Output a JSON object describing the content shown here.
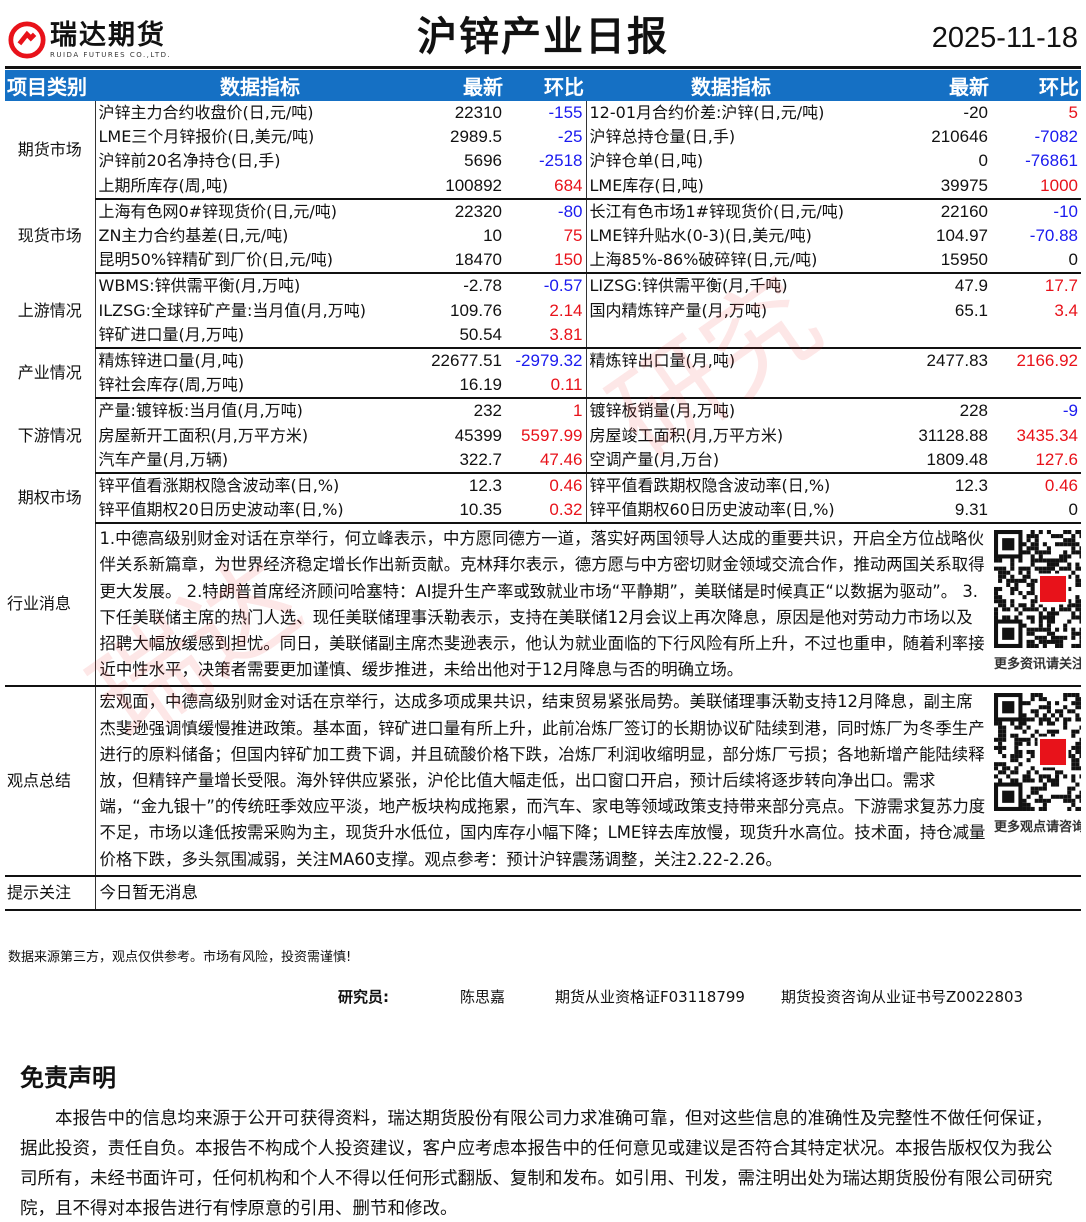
{
  "header": {
    "logo_cn": "瑞达期货",
    "logo_en": "RUIDA FUTURES CO.,LTD.",
    "title": "沪锌产业日报",
    "date": "2025-11-18",
    "brand_color": "#e8121a"
  },
  "table_header": {
    "category": "项目类别",
    "indicator": "数据指标",
    "latest": "最新",
    "change": "环比",
    "indicator2": "数据指标",
    "latest2": "最新",
    "change2": "环比"
  },
  "colors": {
    "header_bg": "#1570c4",
    "positive": "#e8121a",
    "negative": "#1a1aef"
  },
  "sections": [
    {
      "category": "期货市场",
      "rows": [
        {
          "l": [
            "沪锌主力合约收盘价(日,元/吨)",
            "22310",
            "-155"
          ],
          "r": [
            "12-01月合约价差:沪锌(日,元/吨)",
            "-20",
            "5"
          ]
        },
        {
          "l": [
            "LME三个月锌报价(日,美元/吨)",
            "2989.5",
            "-25"
          ],
          "r": [
            "沪锌总持仓量(日,手)",
            "210646",
            "-7082"
          ]
        },
        {
          "l": [
            "沪锌前20名净持仓(日,手)",
            "5696",
            "-2518"
          ],
          "r": [
            "沪锌仓单(日,吨)",
            "0",
            "-76861"
          ]
        },
        {
          "l": [
            "上期所库存(周,吨)",
            "100892",
            "684"
          ],
          "r": [
            "LME库存(日,吨)",
            "39975",
            "1000"
          ]
        }
      ]
    },
    {
      "category": "现货市场",
      "rows": [
        {
          "l": [
            "上海有色网0#锌现货价(日,元/吨)",
            "22320",
            "-80"
          ],
          "r": [
            "长江有色市场1#锌现货价(日,元/吨)",
            "22160",
            "-10"
          ]
        },
        {
          "l": [
            "ZN主力合约基差(日,元/吨)",
            "10",
            "75"
          ],
          "r": [
            "LME锌升贴水(0-3)(日,美元/吨)",
            "104.97",
            "-70.88"
          ]
        },
        {
          "l": [
            "昆明50%锌精矿到厂价(日,元/吨)",
            "18470",
            "150"
          ],
          "r": [
            "上海85%-86%破碎锌(日,元/吨)",
            "15950",
            "0"
          ]
        }
      ]
    },
    {
      "category": "上游情况",
      "rows": [
        {
          "l": [
            "WBMS:锌供需平衡(月,万吨)",
            "-2.78",
            "-0.57"
          ],
          "r": [
            "LIZSG:锌供需平衡(月,千吨)",
            "47.9",
            "17.7"
          ]
        },
        {
          "l": [
            "ILZSG:全球锌矿产量:当月值(月,万吨)",
            "109.76",
            "2.14"
          ],
          "r": [
            "国内精炼锌产量(月,万吨)",
            "65.1",
            "3.4"
          ]
        },
        {
          "l": [
            "锌矿进口量(月,万吨)",
            "50.54",
            "3.81"
          ],
          "r": [
            "",
            "",
            ""
          ]
        }
      ]
    },
    {
      "category": "产业情况",
      "rows": [
        {
          "l": [
            "精炼锌进口量(月,吨)",
            "22677.51",
            "-2979.32"
          ],
          "r": [
            "精炼锌出口量(月,吨)",
            "2477.83",
            "2166.92"
          ]
        },
        {
          "l": [
            "锌社会库存(周,万吨)",
            "16.19",
            "0.11"
          ],
          "r": [
            "",
            "",
            ""
          ]
        }
      ]
    },
    {
      "category": "下游情况",
      "rows": [
        {
          "l": [
            "产量:镀锌板:当月值(月,万吨)",
            "232",
            "1"
          ],
          "r": [
            "镀锌板销量(月,万吨)",
            "228",
            "-9"
          ]
        },
        {
          "l": [
            "房屋新开工面积(月,万平方米)",
            "45399",
            "5597.99"
          ],
          "r": [
            "房屋竣工面积(月,万平方米)",
            "31128.88",
            "3435.34"
          ]
        },
        {
          "l": [
            "汽车产量(月,万辆)",
            "322.7",
            "47.46"
          ],
          "r": [
            "空调产量(月,万台)",
            "1809.48",
            "127.6"
          ]
        }
      ]
    },
    {
      "category": "期权市场",
      "rows": [
        {
          "l": [
            "锌平值看涨期权隐含波动率(日,%)",
            "12.3",
            "0.46"
          ],
          "r": [
            "锌平值看跌期权隐含波动率(日,%)",
            "12.3",
            "0.46"
          ]
        },
        {
          "l": [
            "锌平值期权20日历史波动率(日,%)",
            "10.35",
            "0.32"
          ],
          "r": [
            "锌平值期权60日历史波动率(日,%)",
            "9.31",
            "0"
          ]
        }
      ]
    }
  ],
  "news": {
    "category": "行业消息",
    "text": "1.中德高级别财金对话在京举行，何立峰表示，中方愿同德方一道，落实好两国领导人达成的重要共识，开启全方位战略伙伴关系新篇章，为世界经济稳定增长作出新贡献。克林拜尔表示，德方愿与中方密切财金领域交流合作，推动两国关系取得更大发展。 2.特朗普首席经济顾问哈塞特：AI提升生产率或致就业市场“平静期”，美联储是时候真正“以数据为驱动”。 3.下任美联储主席的热门人选、现任美联储理事沃勒表示，支持在美联储12月会议上再次降息，原因是他对劳动力市场以及招聘大幅放缓感到担忧。同日，美联储副主席杰斐逊表示，他认为就业面临的下行风险有所上升，不过也重申，随着利率接近中性水平，决策者需要更加谨慎、缓步推进，未给出他对于12月降息与否的明确立场。",
    "qr_caption": "更多资讯请关注!"
  },
  "views": {
    "category": "观点总结",
    "text": "宏观面，中德高级别财金对话在京举行，达成多项成果共识，结束贸易紧张局势。美联储理事沃勒支持12月降息，副主席杰斐逊强调慎缓慢推进政策。基本面，锌矿进口量有所上升，此前冶炼厂签订的长期协议矿陆续到港，同时炼厂为冬季生产进行的原料储备；但国内锌矿加工费下调，并且硫酸价格下跌，冶炼厂利润收缩明显，部分炼厂亏损；各地新增产能陆续释放，但精锌产量增长受限。海外锌供应紧张，沪伦比值大幅走低，出口窗口开启，预计后续将逐步转向净出口。需求端，“金九银十”的传统旺季效应平淡，地产板块构成拖累，而汽车、家电等领域政策支持带来部分亮点。下游需求复苏力度不足，市场以逢低按需采购为主，现货升水低位，国内库存小幅下降；LME锌去库放慢，现货升水高位。技术面，持仓减量价格下跌，多头氛围减弱，关注MA60支撑。观点参考：预计沪锌震荡调整，关注2.22-2.26。",
    "qr_caption": "更多观点请咨询!"
  },
  "tips": {
    "category": "提示关注",
    "text": "今日暂无消息"
  },
  "footer": {
    "note": "数据来源第三方，观点仅供参考。市场有风险，投资需谨慎!",
    "researcher_label": "研究员:",
    "researcher_name": "陈思嘉",
    "cert1": "期货从业资格证F03118799",
    "cert2": "期货投资咨询从业证书号Z0022803"
  },
  "disclaimer": {
    "title": "免责声明",
    "text": "本报告中的信息均来源于公开可获得资料，瑞达期货股份有限公司力求准确可靠，但对这些信息的准确性及完整性不做任何保证，据此投资，责任自负。本报告不构成个人投资建议，客户应考虑本报告中的任何意见或建议是否符合其特定状况。本报告版权仅为我公司所有，未经书面许可，任何机构和个人不得以任何形式翻版、复制和发布。如引用、刊发，需注明出处为瑞达期货股份有限公司研究院，且不得对本报告进行有悖原意的引用、删节和修改。"
  },
  "watermark": "瑞达研究"
}
